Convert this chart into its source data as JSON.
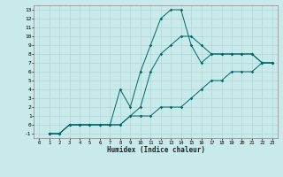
{
  "xlabel": "Humidex (Indice chaleur)",
  "background_color": "#c8eaea",
  "grid_color": "#b0d4d4",
  "line_color": "#006666",
  "xlim": [
    -0.5,
    23.5
  ],
  "ylim": [
    -1.5,
    13.5
  ],
  "xticks": [
    0,
    1,
    2,
    3,
    4,
    5,
    6,
    7,
    8,
    9,
    10,
    11,
    12,
    13,
    14,
    15,
    16,
    17,
    18,
    19,
    20,
    21,
    22,
    23
  ],
  "yticks": [
    -1,
    0,
    1,
    2,
    3,
    4,
    5,
    6,
    7,
    8,
    9,
    10,
    11,
    12,
    13
  ],
  "line1_x": [
    1,
    2,
    3,
    4,
    5,
    6,
    7,
    8,
    9,
    10,
    11,
    12,
    13,
    14,
    15,
    16,
    17,
    18,
    19,
    20,
    21,
    22,
    23
  ],
  "line1_y": [
    -1,
    -1,
    0,
    0,
    0,
    0,
    0,
    0,
    1,
    2,
    6,
    8,
    9,
    10,
    10,
    9,
    8,
    8,
    8,
    8,
    8,
    7,
    7
  ],
  "line2_x": [
    1,
    2,
    3,
    4,
    5,
    6,
    7,
    8,
    9,
    10,
    11,
    12,
    13,
    14,
    15,
    16,
    17,
    18,
    19,
    20,
    21,
    22,
    23
  ],
  "line2_y": [
    -1,
    -1,
    0,
    0,
    0,
    0,
    0,
    0,
    1,
    1,
    1,
    2,
    2,
    2,
    3,
    4,
    5,
    5,
    6,
    6,
    6,
    7,
    7
  ],
  "line3_x": [
    1,
    2,
    3,
    4,
    5,
    6,
    7,
    8,
    9,
    10,
    11,
    12,
    13,
    14,
    15,
    16,
    17,
    18,
    19,
    20,
    21,
    22,
    23
  ],
  "line3_y": [
    -1,
    -1,
    0,
    0,
    0,
    0,
    0,
    4,
    2,
    6,
    9,
    12,
    13,
    13,
    9,
    7,
    8,
    8,
    8,
    8,
    8,
    7,
    7
  ]
}
